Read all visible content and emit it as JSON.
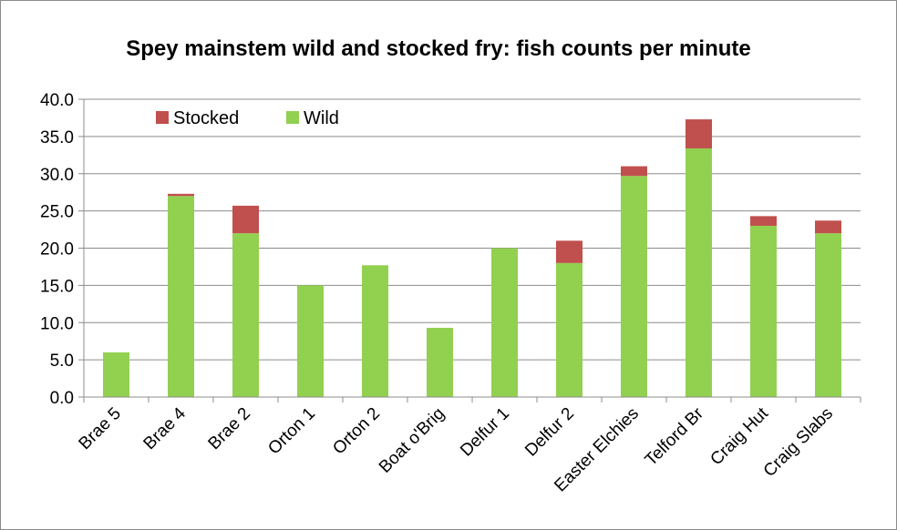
{
  "chart_data": {
    "type": "bar",
    "stacked": true,
    "title": "Spey mainstem wild and stocked fry: fish counts per minute",
    "xlabel": "",
    "ylabel": "",
    "ylim": [
      0,
      40
    ],
    "yticks": [
      "0.0",
      "5.0",
      "10.0",
      "15.0",
      "20.0",
      "25.0",
      "30.0",
      "35.0",
      "40.0"
    ],
    "grid": true,
    "legend_position": "top-left",
    "categories": [
      "Brae 5",
      "Brae 4",
      "Brae 2",
      "Orton 1",
      "Orton 2",
      "Boat o'Brig",
      "Delfur 1",
      "Delfur 2",
      "Easter Elchies",
      "Telford Br",
      "Craig Hut",
      "Craig Slabs"
    ],
    "series": [
      {
        "name": "Wild",
        "color": "#92d050",
        "values": [
          6.0,
          27.0,
          22.0,
          15.0,
          17.7,
          9.3,
          20.0,
          18.0,
          29.7,
          33.4,
          23.0,
          22.0
        ]
      },
      {
        "name": "Stocked",
        "color": "#c0504d",
        "values": [
          0.0,
          0.3,
          3.7,
          0.0,
          0.0,
          0.0,
          0.0,
          3.0,
          1.3,
          3.9,
          1.3,
          1.7
        ]
      }
    ],
    "legend": [
      "Stocked",
      "Wild"
    ]
  }
}
